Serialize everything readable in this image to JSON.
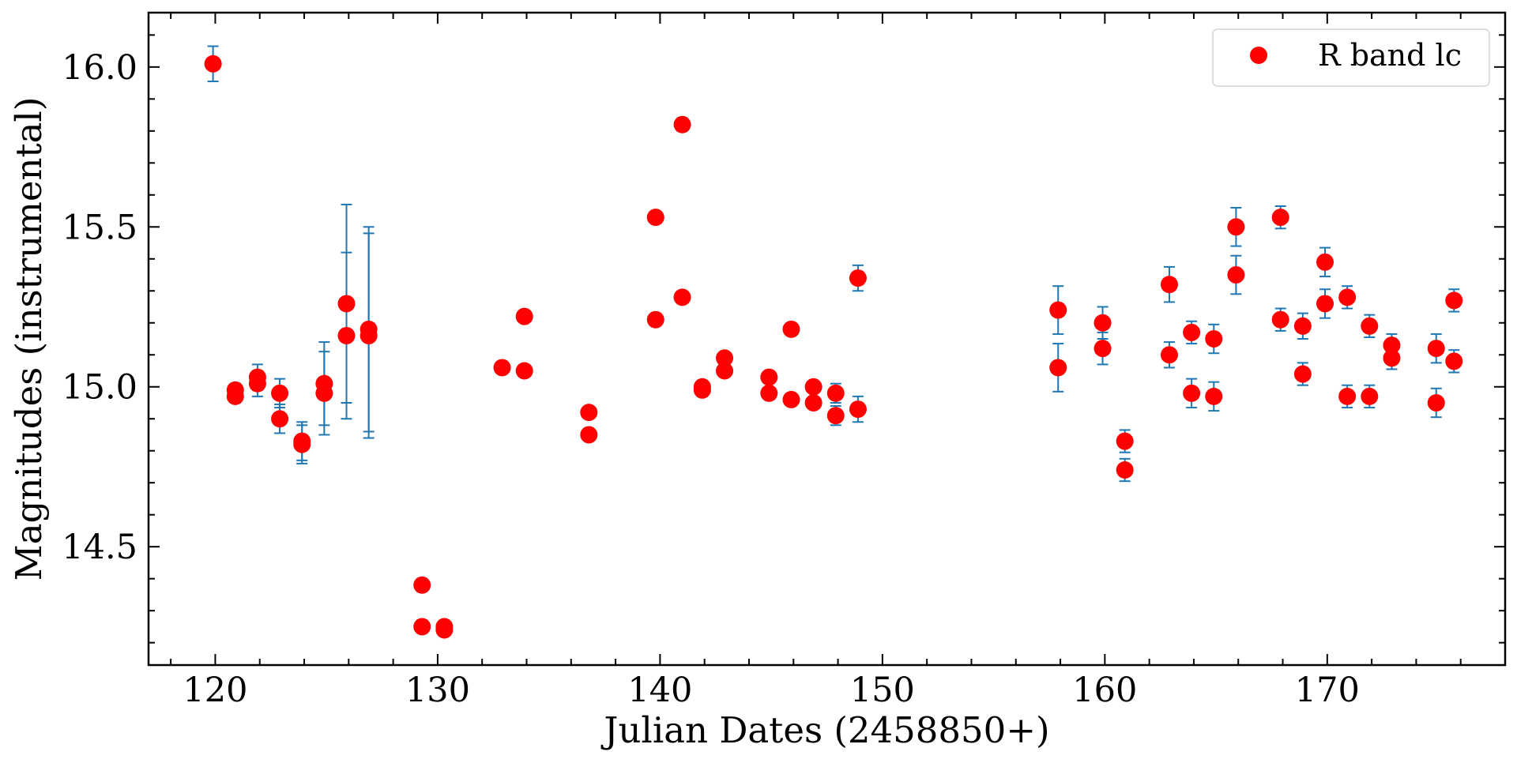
{
  "chart_data": {
    "type": "scatter",
    "title": "",
    "xlabel": "Julian Dates (2458850+)",
    "ylabel": "Magnitudes (instrumental)",
    "xlim": [
      117,
      178
    ],
    "ylim": [
      14.13,
      16.17
    ],
    "xticks": [
      120,
      130,
      140,
      150,
      160,
      170
    ],
    "yticks": [
      14.5,
      15.0,
      15.5,
      16.0
    ],
    "xtick_labels": [
      "120",
      "130",
      "140",
      "150",
      "160",
      "170"
    ],
    "ytick_labels": [
      "14.5",
      "15.0",
      "15.5",
      "16.0"
    ],
    "grid": false,
    "legend_position": "top-right",
    "marker_color": "#ff0000",
    "errorbar_color": "#1f77b4",
    "series": [
      {
        "name": "R band lc",
        "x": [
          119.9,
          120.9,
          120.9,
          121.9,
          121.9,
          122.9,
          122.9,
          123.9,
          123.9,
          124.9,
          124.9,
          125.9,
          125.9,
          126.9,
          126.9,
          129.3,
          129.3,
          130.3,
          130.3,
          132.9,
          133.9,
          133.9,
          136.8,
          136.8,
          139.8,
          139.8,
          141.0,
          141.0,
          141.9,
          141.9,
          142.9,
          142.9,
          144.9,
          144.9,
          145.9,
          145.9,
          146.9,
          146.9,
          147.9,
          147.9,
          148.9,
          148.9,
          157.9,
          157.9,
          159.9,
          159.9,
          160.9,
          160.9,
          162.9,
          162.9,
          163.9,
          163.9,
          164.9,
          164.9,
          165.9,
          165.9,
          167.9,
          167.9,
          168.9,
          168.9,
          169.9,
          169.9,
          170.9,
          170.9,
          171.9,
          171.9,
          172.9,
          172.9,
          174.9,
          174.9,
          175.7,
          175.7
        ],
        "y": [
          16.01,
          14.99,
          14.97,
          15.03,
          15.01,
          14.98,
          14.9,
          14.83,
          14.82,
          15.01,
          14.98,
          15.26,
          15.16,
          15.18,
          15.16,
          14.38,
          14.25,
          14.25,
          14.24,
          15.06,
          15.22,
          15.05,
          14.92,
          14.85,
          15.53,
          15.21,
          15.82,
          15.28,
          15.0,
          14.99,
          15.09,
          15.05,
          15.03,
          14.98,
          15.18,
          14.96,
          15.0,
          14.95,
          14.98,
          14.91,
          15.34,
          14.93,
          15.24,
          15.06,
          15.2,
          15.12,
          14.83,
          14.74,
          15.32,
          15.1,
          15.17,
          14.98,
          15.15,
          14.97,
          15.5,
          15.35,
          15.53,
          15.21,
          15.19,
          15.04,
          15.39,
          15.26,
          15.28,
          14.97,
          15.19,
          14.97,
          15.13,
          15.09,
          15.12,
          14.95,
          15.27,
          15.08
        ],
        "yerr": [
          0.055,
          0.02,
          0.02,
          0.04,
          0.04,
          0.045,
          0.045,
          0.06,
          0.06,
          0.13,
          0.13,
          0.31,
          0.26,
          0.32,
          0.32,
          0.02,
          0.02,
          0.015,
          0.015,
          0.015,
          0.015,
          0.015,
          0.015,
          0.015,
          0.015,
          0.015,
          0.02,
          0.015,
          0.02,
          0.02,
          0.015,
          0.015,
          0.015,
          0.015,
          0.015,
          0.015,
          0.015,
          0.015,
          0.03,
          0.03,
          0.04,
          0.04,
          0.075,
          0.075,
          0.05,
          0.05,
          0.035,
          0.035,
          0.055,
          0.04,
          0.035,
          0.045,
          0.045,
          0.045,
          0.06,
          0.06,
          0.035,
          0.035,
          0.04,
          0.035,
          0.045,
          0.045,
          0.035,
          0.035,
          0.035,
          0.035,
          0.035,
          0.035,
          0.045,
          0.045,
          0.035,
          0.035
        ]
      }
    ]
  }
}
